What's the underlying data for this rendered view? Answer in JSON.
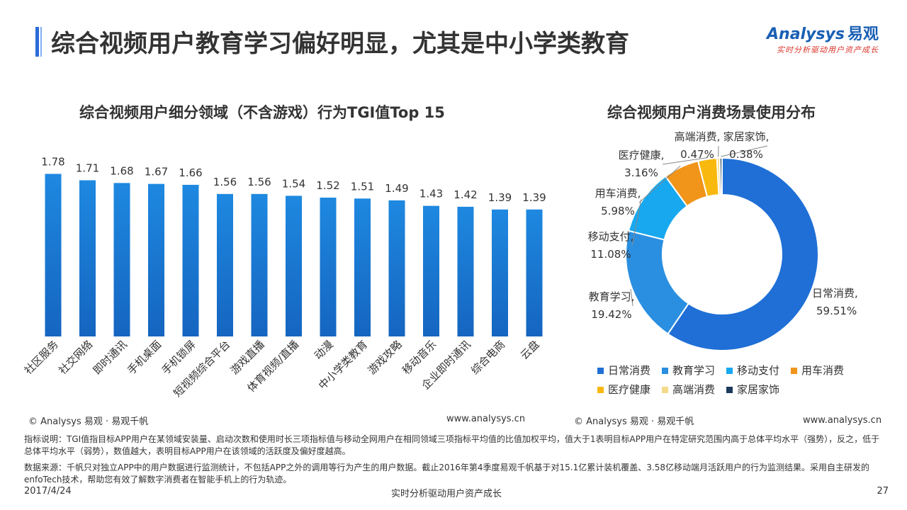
{
  "header": {
    "title": "综合视频用户教育学习偏好明显，尤其是中小学类教育",
    "logo_main": "Analysys",
    "logo_cn": "易观",
    "logo_sub": "实时分析驱动用户资产成长"
  },
  "colors": {
    "accent": "#2b6cd9",
    "bar_top": "#1e88e0",
    "bar_bottom": "#1565c0"
  },
  "chart_data": [
    {
      "type": "bar",
      "title": "综合视频用户细分领域（不含游戏）行为TGI值Top 15",
      "categories": [
        "社区服务",
        "社交网络",
        "即时通讯",
        "手机桌面",
        "手机锁屏",
        "短视频综合平台",
        "游戏直播",
        "体育视频/直播",
        "动漫",
        "中小学类教育",
        "游戏攻略",
        "移动音乐",
        "企业即时通讯",
        "综合电商",
        "云盘"
      ],
      "values": [
        1.78,
        1.71,
        1.68,
        1.67,
        1.66,
        1.56,
        1.56,
        1.54,
        1.52,
        1.51,
        1.49,
        1.43,
        1.42,
        1.39,
        1.39
      ],
      "value_labels": [
        "1.78",
        "1.71",
        "1.68",
        "1.67",
        "1.66",
        "1.56",
        "1.56",
        "1.54",
        "1.52",
        "1.51",
        "1.49",
        "1.43",
        "1.42",
        "1.39",
        "1.39"
      ],
      "ylim": [
        0,
        1.9
      ],
      "grid": false
    },
    {
      "type": "pie",
      "title": "综合视频用户消费场景使用分布",
      "donut": true,
      "labels": [
        "日常消费",
        "教育学习",
        "移动支付",
        "用车消费",
        "医疗健康",
        "高端消费",
        "家居家饰"
      ],
      "values": [
        59.51,
        19.42,
        11.08,
        5.98,
        3.16,
        0.47,
        0.38
      ],
      "value_labels": [
        "59.51%",
        "19.42%",
        "11.08%",
        "5.98%",
        "3.16%",
        "0.47%",
        "0.38%"
      ],
      "colors": [
        "#1f6fd6",
        "#2a8fe0",
        "#17a8f0",
        "#f0941a",
        "#f8b80e",
        "#f3d98a",
        "#1b3a5c"
      ],
      "legend_position": "bottom"
    }
  ],
  "copyright_left": "© Analysys 易观 · 易观千帆",
  "url_left": "www.analysys.cn",
  "copyright_right": "© Analysys 易观 · 易观千帆",
  "url_right": "www.analysys.cn",
  "notes": {
    "metric": "指标说明：TGI值指目标APP用户在某领域安装量、启动次数和使用时长三项指标值与移动全网用户在相同领域三项指标平均值的比值加权平均，值大于1表明目标APP用户在特定研究范围内高于总体平均水平（强势），反之，低于总体平均水平（弱势），数值越大，表明目标APP用户在该领域的活跃度及偏好度越高。",
    "source": "数据来源：千帆只对独立APP中的用户数据进行监测统计，不包括APP之外的调用等行为产生的用户数据。截止2016年第4季度易观千帆基于对15.1亿累计装机覆盖、3.58亿移动端月活跃用户的行为监测结果。采用自主研发的enfoTech技术，帮助您有效了解数字消费者在智能手机上的行为轨迹。"
  },
  "footer": {
    "date": "2017/4/24",
    "slogan": "实时分析驱动用户资产成长",
    "page": "27"
  }
}
